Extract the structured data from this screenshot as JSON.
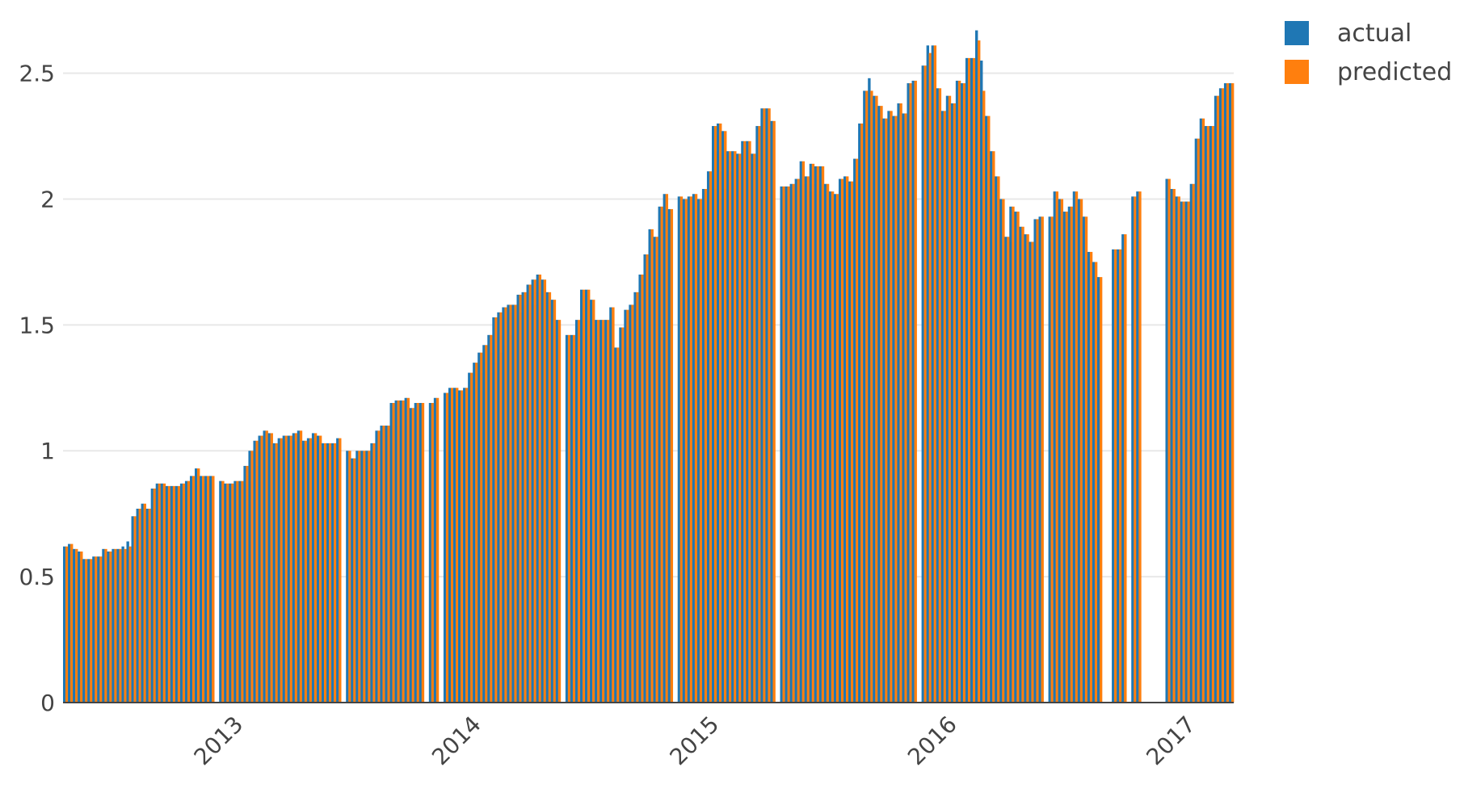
{
  "chart_data": {
    "type": "bar",
    "title": "",
    "xlabel": "",
    "ylabel": "",
    "x_start": "2012-05-01",
    "x_end": "2017-04-01",
    "x_ticks": [
      "2013",
      "2014",
      "2015",
      "2016",
      "2017"
    ],
    "y_ticks": [
      "0",
      "0.5",
      "1",
      "1.5",
      "2",
      "2.5"
    ],
    "ylim": [
      0,
      2.72
    ],
    "grid": true,
    "legend": "top-right",
    "series": [
      {
        "name": "actual",
        "color": "#1f77b4"
      },
      {
        "name": "predicted",
        "color": "#ff7f0e"
      }
    ],
    "values": [
      [
        0.62,
        0.62
      ],
      [
        0.63,
        0.63
      ],
      [
        0.61,
        0.61
      ],
      [
        0.6,
        0.6
      ],
      [
        0.57,
        0.57
      ],
      [
        0.57,
        0.57
      ],
      [
        0.58,
        0.58
      ],
      [
        0.58,
        0.58
      ],
      [
        0.61,
        0.61
      ],
      [
        0.6,
        0.6
      ],
      [
        0.61,
        0.61
      ],
      [
        0.61,
        0.61
      ],
      [
        0.62,
        0.61
      ],
      [
        0.64,
        0.62
      ],
      [
        0.74,
        0.74
      ],
      [
        0.77,
        0.77
      ],
      [
        0.79,
        0.79
      ],
      [
        0.77,
        0.77
      ],
      [
        0.85,
        0.85
      ],
      [
        0.87,
        0.87
      ],
      [
        0.87,
        0.87
      ],
      [
        0.86,
        0.86
      ],
      [
        0.86,
        0.86
      ],
      [
        0.86,
        0.86
      ],
      [
        0.87,
        0.87
      ],
      [
        0.88,
        0.88
      ],
      [
        0.9,
        0.9
      ],
      [
        0.93,
        0.93
      ],
      [
        0.9,
        0.9
      ],
      [
        0.9,
        0.9
      ],
      [
        0.9,
        0.9
      ],
      [
        0.0,
        0.0
      ],
      [
        0.88,
        0.88
      ],
      [
        0.87,
        0.87
      ],
      [
        0.87,
        0.87
      ],
      [
        0.88,
        0.88
      ],
      [
        0.88,
        0.88
      ],
      [
        0.94,
        0.94
      ],
      [
        1.0,
        1.0
      ],
      [
        1.04,
        1.04
      ],
      [
        1.06,
        1.06
      ],
      [
        1.08,
        1.08
      ],
      [
        1.07,
        1.07
      ],
      [
        1.03,
        1.03
      ],
      [
        1.05,
        1.05
      ],
      [
        1.06,
        1.06
      ],
      [
        1.06,
        1.06
      ],
      [
        1.07,
        1.07
      ],
      [
        1.08,
        1.08
      ],
      [
        1.04,
        1.04
      ],
      [
        1.05,
        1.05
      ],
      [
        1.07,
        1.07
      ],
      [
        1.06,
        1.06
      ],
      [
        1.03,
        1.03
      ],
      [
        1.03,
        1.03
      ],
      [
        1.03,
        1.03
      ],
      [
        1.05,
        1.05
      ],
      [
        0.0,
        0.0
      ],
      [
        1.0,
        1.0
      ],
      [
        0.97,
        0.97
      ],
      [
        1.0,
        1.0
      ],
      [
        1.0,
        1.0
      ],
      [
        1.0,
        1.0
      ],
      [
        1.03,
        1.03
      ],
      [
        1.08,
        1.08
      ],
      [
        1.1,
        1.1
      ],
      [
        1.1,
        1.1
      ],
      [
        1.19,
        1.19
      ],
      [
        1.2,
        1.2
      ],
      [
        1.2,
        1.2
      ],
      [
        1.21,
        1.21
      ],
      [
        1.17,
        1.17
      ],
      [
        1.19,
        1.19
      ],
      [
        1.19,
        1.19
      ],
      [
        0.0,
        0.0
      ],
      [
        1.19,
        1.19
      ],
      [
        1.21,
        1.21
      ],
      [
        0.0,
        0.0
      ],
      [
        1.23,
        1.23
      ],
      [
        1.25,
        1.25
      ],
      [
        1.25,
        1.25
      ],
      [
        1.24,
        1.24
      ],
      [
        1.25,
        1.25
      ],
      [
        1.31,
        1.31
      ],
      [
        1.35,
        1.35
      ],
      [
        1.39,
        1.39
      ],
      [
        1.42,
        1.42
      ],
      [
        1.46,
        1.46
      ],
      [
        1.53,
        1.53
      ],
      [
        1.55,
        1.55
      ],
      [
        1.57,
        1.57
      ],
      [
        1.58,
        1.58
      ],
      [
        1.58,
        1.58
      ],
      [
        1.62,
        1.62
      ],
      [
        1.63,
        1.63
      ],
      [
        1.66,
        1.66
      ],
      [
        1.68,
        1.68
      ],
      [
        1.7,
        1.7
      ],
      [
        1.68,
        1.68
      ],
      [
        1.63,
        1.63
      ],
      [
        1.6,
        1.6
      ],
      [
        1.52,
        1.52
      ],
      [
        0.0,
        0.0
      ],
      [
        1.46,
        1.46
      ],
      [
        1.46,
        1.46
      ],
      [
        1.52,
        1.52
      ],
      [
        1.64,
        1.64
      ],
      [
        1.64,
        1.64
      ],
      [
        1.6,
        1.6
      ],
      [
        1.52,
        1.52
      ],
      [
        1.52,
        1.52
      ],
      [
        1.52,
        1.52
      ],
      [
        1.57,
        1.57
      ],
      [
        1.41,
        1.41
      ],
      [
        1.49,
        1.49
      ],
      [
        1.56,
        1.56
      ],
      [
        1.58,
        1.58
      ],
      [
        1.63,
        1.63
      ],
      [
        1.7,
        1.7
      ],
      [
        1.78,
        1.78
      ],
      [
        1.88,
        1.88
      ],
      [
        1.85,
        1.85
      ],
      [
        1.97,
        1.97
      ],
      [
        2.02,
        2.02
      ],
      [
        1.96,
        1.96
      ],
      [
        0.0,
        0.0
      ],
      [
        2.01,
        2.01
      ],
      [
        2.0,
        2.0
      ],
      [
        2.01,
        2.01
      ],
      [
        2.02,
        2.02
      ],
      [
        2.0,
        2.0
      ],
      [
        2.04,
        2.04
      ],
      [
        2.11,
        2.11
      ],
      [
        2.29,
        2.29
      ],
      [
        2.3,
        2.3
      ],
      [
        2.27,
        2.27
      ],
      [
        2.19,
        2.19
      ],
      [
        2.19,
        2.19
      ],
      [
        2.18,
        2.18
      ],
      [
        2.23,
        2.23
      ],
      [
        2.23,
        2.23
      ],
      [
        2.18,
        2.18
      ],
      [
        2.29,
        2.29
      ],
      [
        2.36,
        2.36
      ],
      [
        2.36,
        2.36
      ],
      [
        2.31,
        2.31
      ],
      [
        0.0,
        0.0
      ],
      [
        2.05,
        2.05
      ],
      [
        2.05,
        2.05
      ],
      [
        2.06,
        2.06
      ],
      [
        2.08,
        2.08
      ],
      [
        2.15,
        2.15
      ],
      [
        2.09,
        2.09
      ],
      [
        2.14,
        2.14
      ],
      [
        2.13,
        2.13
      ],
      [
        2.13,
        2.13
      ],
      [
        2.06,
        2.06
      ],
      [
        2.03,
        2.03
      ],
      [
        2.02,
        2.02
      ],
      [
        2.08,
        2.08
      ],
      [
        2.09,
        2.09
      ],
      [
        2.07,
        2.07
      ],
      [
        2.16,
        2.16
      ],
      [
        2.3,
        2.3
      ],
      [
        2.43,
        2.43
      ],
      [
        2.48,
        2.43
      ],
      [
        2.41,
        2.41
      ],
      [
        2.37,
        2.37
      ],
      [
        2.32,
        2.32
      ],
      [
        2.35,
        2.35
      ],
      [
        2.33,
        2.33
      ],
      [
        2.38,
        2.38
      ],
      [
        2.34,
        2.34
      ],
      [
        2.46,
        2.46
      ],
      [
        2.47,
        2.47
      ],
      [
        0.0,
        0.0
      ],
      [
        2.53,
        2.53
      ],
      [
        2.61,
        2.58
      ],
      [
        2.61,
        2.61
      ],
      [
        2.44,
        2.44
      ],
      [
        2.35,
        2.35
      ],
      [
        2.41,
        2.41
      ],
      [
        2.38,
        2.38
      ],
      [
        2.47,
        2.47
      ],
      [
        2.46,
        2.46
      ],
      [
        2.56,
        2.56
      ],
      [
        2.56,
        2.56
      ],
      [
        2.67,
        2.63
      ],
      [
        2.55,
        2.43
      ],
      [
        2.33,
        2.33
      ],
      [
        2.19,
        2.19
      ],
      [
        2.09,
        2.09
      ],
      [
        2.0,
        2.0
      ],
      [
        1.85,
        1.85
      ],
      [
        1.97,
        1.97
      ],
      [
        1.95,
        1.95
      ],
      [
        1.89,
        1.89
      ],
      [
        1.86,
        1.86
      ],
      [
        1.83,
        1.83
      ],
      [
        1.92,
        1.92
      ],
      [
        1.93,
        1.93
      ],
      [
        0.0,
        0.0
      ],
      [
        1.93,
        1.93
      ],
      [
        2.03,
        2.03
      ],
      [
        2.0,
        2.0
      ],
      [
        1.95,
        1.95
      ],
      [
        1.97,
        1.97
      ],
      [
        2.03,
        2.03
      ],
      [
        2.0,
        2.0
      ],
      [
        1.93,
        1.93
      ],
      [
        1.79,
        1.79
      ],
      [
        1.75,
        1.75
      ],
      [
        1.69,
        1.69
      ],
      [
        0.0,
        0.0
      ],
      [
        0.0,
        0.0
      ],
      [
        1.8,
        1.8
      ],
      [
        1.8,
        1.8
      ],
      [
        1.86,
        1.86
      ],
      [
        0.0,
        0.0
      ],
      [
        2.01,
        2.01
      ],
      [
        2.03,
        2.03
      ],
      [
        0.0,
        0.0
      ],
      [
        0.0,
        0.0
      ],
      [
        0.0,
        0.0
      ],
      [
        0.0,
        0.0
      ],
      [
        0.0,
        0.0
      ],
      [
        2.08,
        2.08
      ],
      [
        2.04,
        2.04
      ],
      [
        2.01,
        2.01
      ],
      [
        1.99,
        1.99
      ],
      [
        1.99,
        1.99
      ],
      [
        2.06,
        2.06
      ],
      [
        2.24,
        2.24
      ],
      [
        2.32,
        2.32
      ],
      [
        2.29,
        2.29
      ],
      [
        2.29,
        2.29
      ],
      [
        2.41,
        2.41
      ],
      [
        2.44,
        2.44
      ],
      [
        2.46,
        2.46
      ],
      [
        2.46,
        2.46
      ]
    ]
  }
}
